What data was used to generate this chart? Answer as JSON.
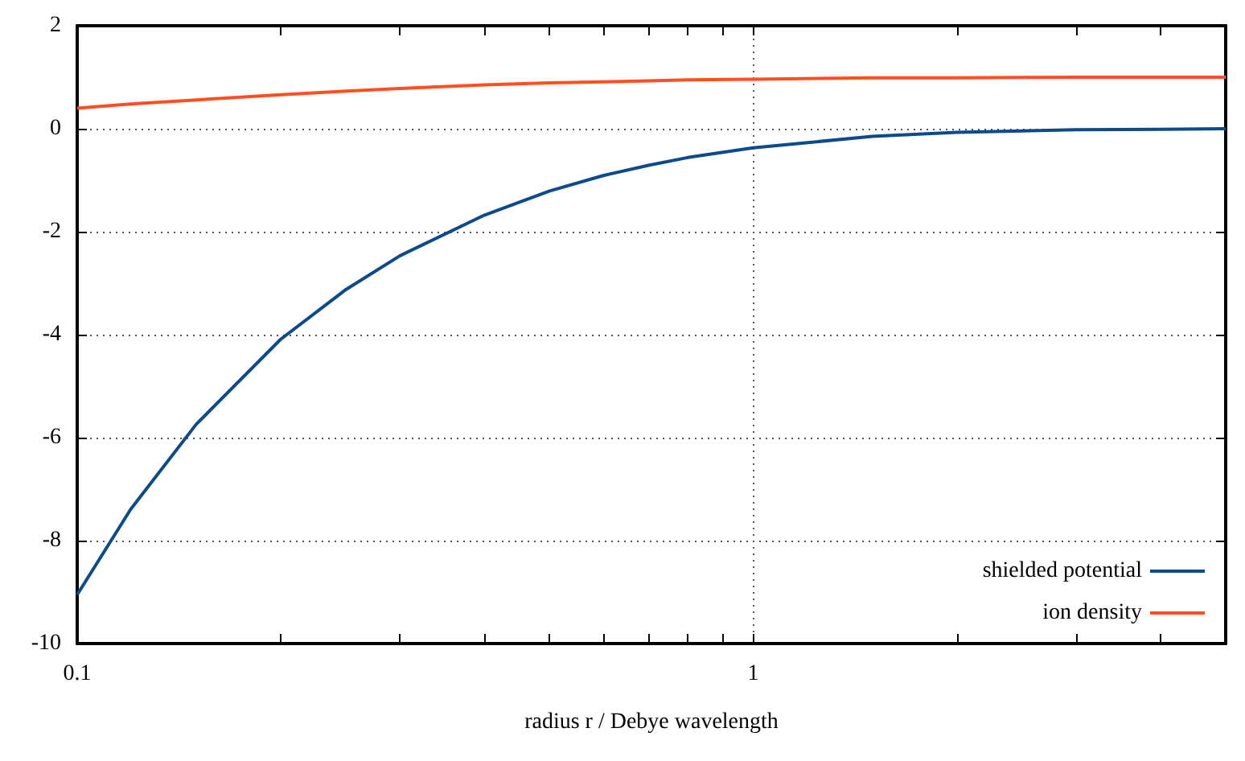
{
  "chart_data": {
    "type": "line",
    "xlabel": "radius r / Debye wavelength",
    "log": "x",
    "xlim": [
      0.1,
      5
    ],
    "xticks": [
      0.1,
      {
        "value": 0.2,
        "label": null
      },
      {
        "value": 0.3,
        "label": null
      },
      {
        "value": 0.4,
        "label": null
      },
      {
        "value": 0.5,
        "label": null
      },
      {
        "value": 0.6,
        "label": null
      },
      {
        "value": 0.7,
        "label": null
      },
      {
        "value": 0.8,
        "label": null
      },
      {
        "value": 0.9,
        "label": null
      },
      1,
      {
        "value": 2,
        "label": null
      },
      {
        "value": 3,
        "label": null
      },
      {
        "value": 4,
        "label": null
      }
    ],
    "ylim": [
      -10,
      2
    ],
    "yticks": [
      -10,
      -8,
      -6,
      -4,
      -2,
      0,
      2
    ],
    "grid": true,
    "legend": "bottom right",
    "marker": "none",
    "line_style": "solid",
    "x": [
      0.1,
      0.12,
      0.15,
      0.2,
      0.25,
      0.3,
      0.4,
      0.5,
      0.6,
      0.7,
      0.8,
      1,
      1.5,
      2,
      3,
      4,
      5
    ],
    "series": [
      {
        "name": "shielded potential",
        "color": "#0b4a8b",
        "values": [
          -9.05,
          -7.39,
          -5.74,
          -4.09,
          -3.12,
          -2.47,
          -1.68,
          -1.21,
          -0.91,
          -0.71,
          -0.56,
          -0.37,
          -0.15,
          -0.07,
          -0.02,
          -0.01,
          0
        ]
      },
      {
        "name": "ion density",
        "color": "#ff4f1f",
        "values": [
          0.4,
          0.48,
          0.56,
          0.66,
          0.73,
          0.78,
          0.85,
          0.89,
          0.91,
          0.93,
          0.95,
          0.96,
          0.99,
          0.99,
          1,
          1,
          1
        ]
      }
    ]
  }
}
